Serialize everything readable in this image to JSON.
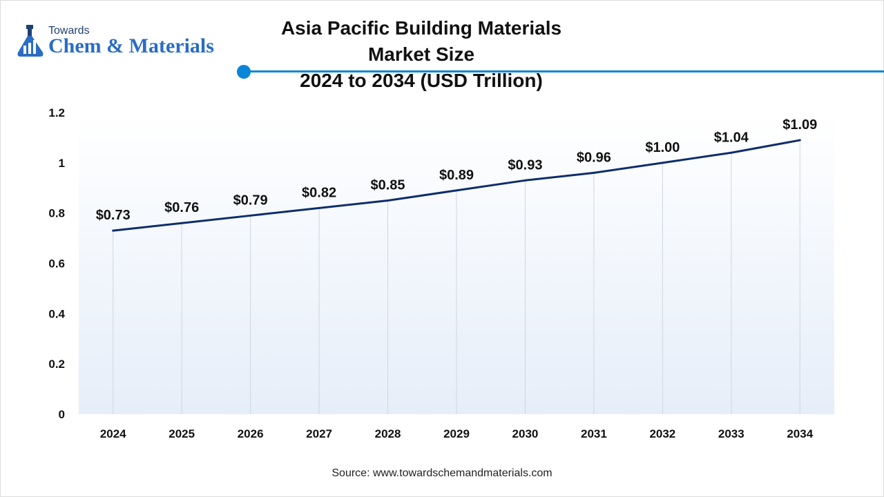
{
  "logo": {
    "small_text": "Towards",
    "big_text": "Chem & Materials"
  },
  "header": {
    "title_line1": "Asia Pacific Building Materials Market Size",
    "title_line2": "2024 to 2034 (USD Trillion)"
  },
  "footer": {
    "source": "Source: www.towardschemandmaterials.com"
  },
  "colors": {
    "line": "#0d2d6b",
    "accent": "#0a86d8",
    "logo_blue": "#2a6cc4"
  },
  "chart_data": {
    "type": "line",
    "title": "Asia Pacific Building Materials Market Size 2024 to 2034 (USD Trillion)",
    "x": [
      "2024",
      "2025",
      "2026",
      "2027",
      "2028",
      "2029",
      "2030",
      "2031",
      "2032",
      "2033",
      "2034"
    ],
    "values": [
      0.73,
      0.76,
      0.79,
      0.82,
      0.85,
      0.89,
      0.93,
      0.96,
      1.0,
      1.04,
      1.09
    ],
    "data_labels": [
      "$0.73",
      "$0.76",
      "$0.79",
      "$0.82",
      "$0.85",
      "$0.89",
      "$0.93",
      "$0.96",
      "$1.00",
      "$1.04",
      "$1.09"
    ],
    "y_ticks": [
      "0",
      "0.2",
      "0.4",
      "0.6",
      "0.8",
      "1",
      "1.2"
    ],
    "y_tick_values": [
      0,
      0.2,
      0.4,
      0.6,
      0.8,
      1.0,
      1.2
    ],
    "ylim": [
      0,
      1.2
    ],
    "grid": "vertical",
    "legend": "none"
  }
}
